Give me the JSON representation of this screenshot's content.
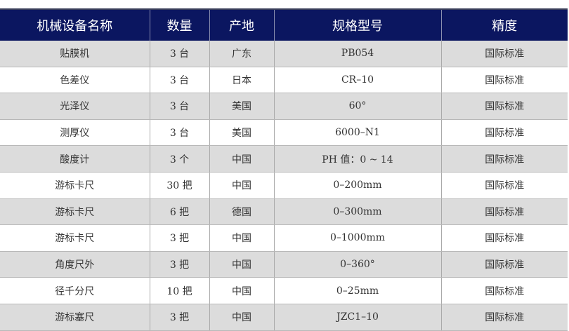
{
  "table": {
    "headers": [
      "机械设备名称",
      "数量",
      "产地",
      "规格型号",
      "精度"
    ],
    "rows": [
      [
        "贴膜机",
        "3 台",
        "广东",
        "PB054",
        "国际标准"
      ],
      [
        "色差仪",
        "3 台",
        "日本",
        "CR–10",
        "国际标准"
      ],
      [
        "光泽仪",
        "3 台",
        "美国",
        "60°",
        "国际标准"
      ],
      [
        "测厚仪",
        "3 台",
        "美国",
        "6000–N1",
        "国际标准"
      ],
      [
        "酸度计",
        "3 个",
        "中国",
        "PH 值：0 ~ 14",
        "国际标准"
      ],
      [
        "游标卡尺",
        "30 把",
        "中国",
        "0–200mm",
        "国际标准"
      ],
      [
        "游标卡尺",
        "6 把",
        "德国",
        "0–300mm",
        "国际标准"
      ],
      [
        "游标卡尺",
        "3 把",
        "中国",
        "0–1000mm",
        "国际标准"
      ],
      [
        "角度尺外",
        "3 把",
        "中国",
        "0–360°",
        "国际标准"
      ],
      [
        "径千分尺",
        "10 把",
        "中国",
        "0–25mm",
        "国际标准"
      ],
      [
        "游标塞尺",
        "3 把",
        "中国",
        "JZC1–10",
        "国际标准"
      ]
    ]
  },
  "colors": {
    "header": "#0b1660",
    "row_alt": "#dcdcdc"
  }
}
